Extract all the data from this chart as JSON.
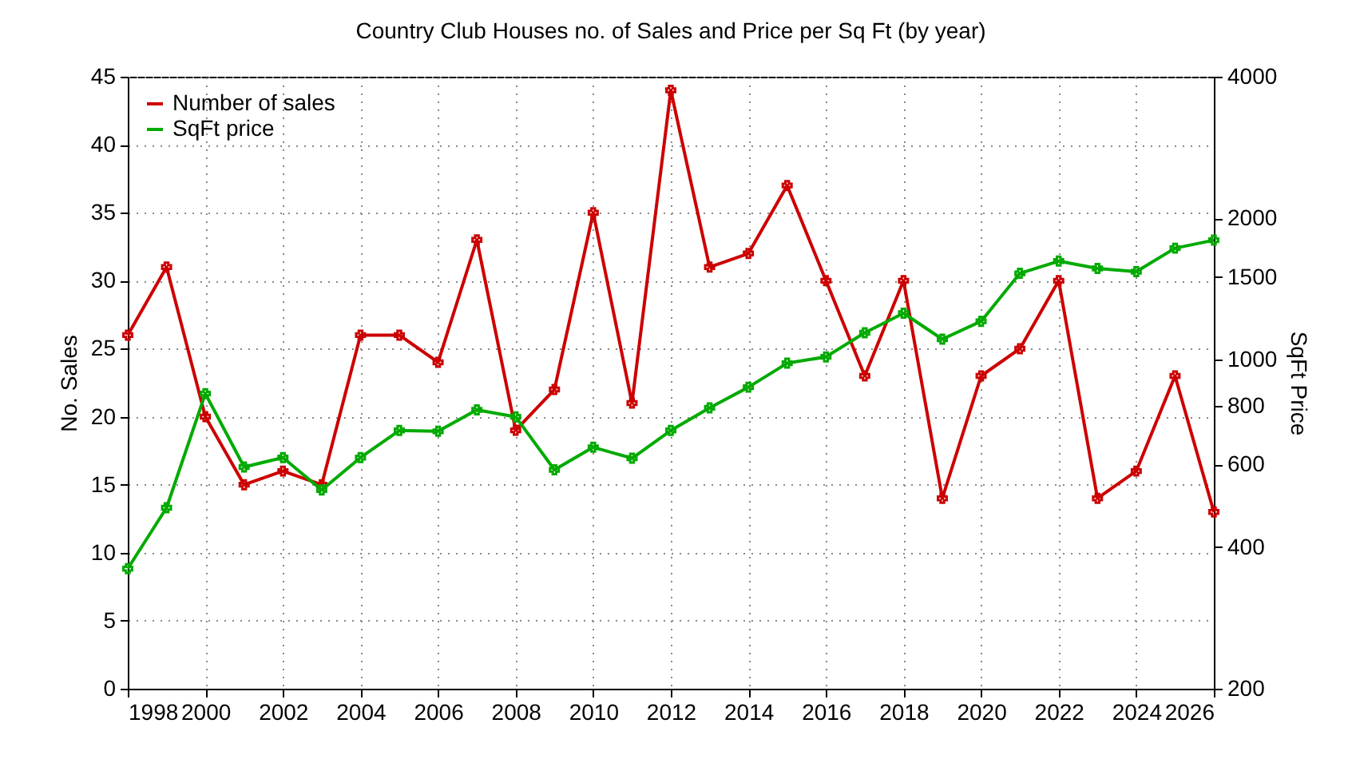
{
  "chart_data": {
    "type": "line",
    "title": "Country Club Houses no. of Sales and Price per Sq Ft (by year)",
    "ylabel": "No. Sales",
    "y2label": "SqFt Price",
    "x": [
      1998,
      1999,
      2000,
      2001,
      2002,
      2003,
      2004,
      2005,
      2006,
      2007,
      2008,
      2009,
      2010,
      2011,
      2012,
      2013,
      2014,
      2015,
      2016,
      2017,
      2018,
      2019,
      2020,
      2021,
      2022,
      2023,
      2024,
      2025,
      2026
    ],
    "series": [
      {
        "name": "Number of sales",
        "color": "#cc0000",
        "values": [
          26,
          31,
          20,
          15,
          16,
          15,
          26,
          26,
          24,
          33,
          19,
          22,
          35,
          21,
          44,
          31,
          32,
          37,
          30,
          23,
          30,
          14,
          23,
          25,
          30,
          14,
          16,
          23,
          13
        ]
      },
      {
        "name": "SqFt price",
        "color": "#00aa00",
        "axis": "y2",
        "values": [
          360,
          485,
          848,
          592,
          620,
          529,
          620,
          708,
          705,
          783,
          757,
          584,
          652,
          618,
          708,
          791,
          875,
          984,
          1015,
          1142,
          1257,
          1107,
          1208,
          1528,
          1622,
          1565,
          1540,
          1728,
          1797
        ]
      }
    ],
    "xlim": [
      1998,
      2026
    ],
    "xticks": [
      1998,
      2000,
      2002,
      2004,
      2006,
      2008,
      2010,
      2012,
      2014,
      2016,
      2018,
      2020,
      2022,
      2024,
      2026
    ],
    "ylim": [
      0,
      45
    ],
    "yticks": [
      0,
      5,
      10,
      15,
      20,
      25,
      30,
      35,
      40,
      45
    ],
    "y2lim": [
      200,
      4000
    ],
    "y2ticks": [
      200,
      400,
      600,
      800,
      1000,
      1500,
      2000,
      4000
    ],
    "log": "y2",
    "grid": true,
    "legend": "top left",
    "marker": "cross",
    "line_style": "solid"
  }
}
